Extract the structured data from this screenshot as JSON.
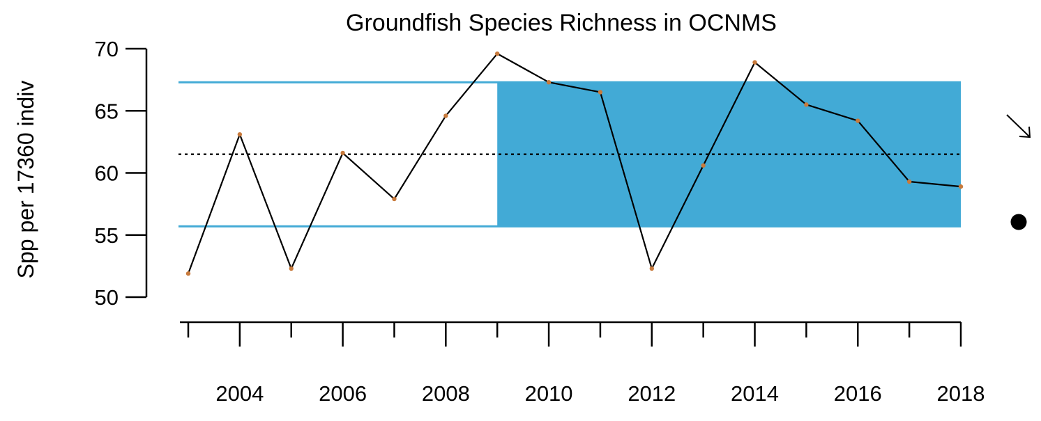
{
  "chart_data": {
    "type": "line",
    "title": "Groundfish Species Richness in OCNMS",
    "xlabel": "",
    "ylabel": "Spp per 17360 indiv",
    "x": [
      2003,
      2004,
      2005,
      2006,
      2007,
      2008,
      2009,
      2010,
      2011,
      2012,
      2013,
      2014,
      2015,
      2016,
      2017,
      2018
    ],
    "series": [
      {
        "values": [
          51.9,
          63.1,
          52.3,
          61.6,
          57.9,
          64.6,
          69.6,
          67.3,
          66.5,
          52.3,
          60.6,
          68.9,
          65.5,
          64.2,
          59.3,
          58.9
        ]
      }
    ],
    "xlim": [
      2003,
      2018
    ],
    "ylim": [
      50,
      70
    ],
    "yticks": [
      50,
      55,
      60,
      65,
      70
    ],
    "xticks_major": [
      2004,
      2006,
      2008,
      2010,
      2012,
      2014,
      2016,
      2018
    ],
    "xticks_minor": [
      2003,
      2005,
      2007,
      2009,
      2011,
      2013,
      2015,
      2017
    ],
    "mean": 61.5,
    "upper_sd": 67.3,
    "lower_sd": 55.7,
    "recent_window": [
      2009,
      2018
    ],
    "trend_indicator": "decreasing-arrow",
    "mean_indicator": "within-one-sd-dot",
    "colors": {
      "line": "#000000",
      "points": "#c87a3c",
      "band": "#42aad6",
      "sd_lines": "#42aad6",
      "mean_line": "#000000"
    },
    "grid": false,
    "legend": "none"
  }
}
